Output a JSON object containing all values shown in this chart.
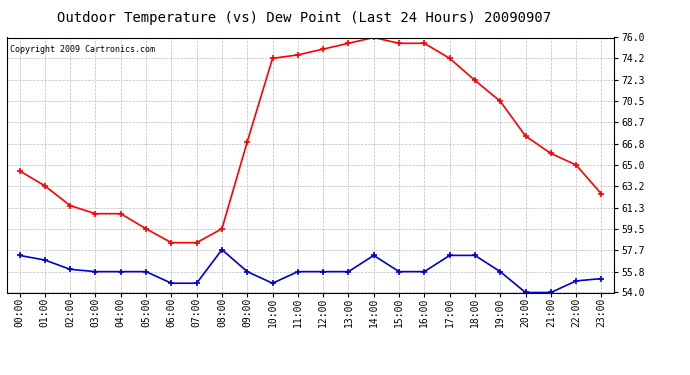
{
  "title": "Outdoor Temperature (vs) Dew Point (Last 24 Hours) 20090907",
  "copyright": "Copyright 2009 Cartronics.com",
  "hours": [
    "00:00",
    "01:00",
    "02:00",
    "03:00",
    "04:00",
    "05:00",
    "06:00",
    "07:00",
    "08:00",
    "09:00",
    "10:00",
    "11:00",
    "12:00",
    "13:00",
    "14:00",
    "15:00",
    "16:00",
    "17:00",
    "18:00",
    "19:00",
    "20:00",
    "21:00",
    "22:00",
    "23:00"
  ],
  "temp": [
    64.5,
    63.2,
    61.5,
    60.8,
    60.8,
    59.5,
    58.3,
    58.3,
    59.5,
    67.0,
    74.2,
    74.5,
    75.0,
    75.5,
    76.0,
    75.5,
    75.5,
    74.2,
    72.3,
    70.5,
    67.5,
    66.0,
    65.0,
    62.5
  ],
  "dew": [
    57.2,
    56.8,
    56.0,
    55.8,
    55.8,
    55.8,
    54.8,
    54.8,
    57.7,
    55.8,
    54.8,
    55.8,
    55.8,
    55.8,
    57.2,
    55.8,
    55.8,
    57.2,
    57.2,
    55.8,
    54.0,
    54.0,
    55.0,
    55.2
  ],
  "temp_color": "#ff0000",
  "dew_color": "#0000cc",
  "bg_color": "#ffffff",
  "plot_bg_color": "#ffffff",
  "grid_color": "#bbbbbb",
  "ylim_min": 54.0,
  "ylim_max": 76.0,
  "yticks": [
    54.0,
    55.8,
    57.7,
    59.5,
    61.3,
    63.2,
    65.0,
    66.8,
    68.7,
    70.5,
    72.3,
    74.2,
    76.0
  ],
  "title_fontsize": 10,
  "copyright_fontsize": 6,
  "tick_fontsize": 7,
  "marker": "+",
  "marker_size": 4,
  "line_width": 1.2
}
